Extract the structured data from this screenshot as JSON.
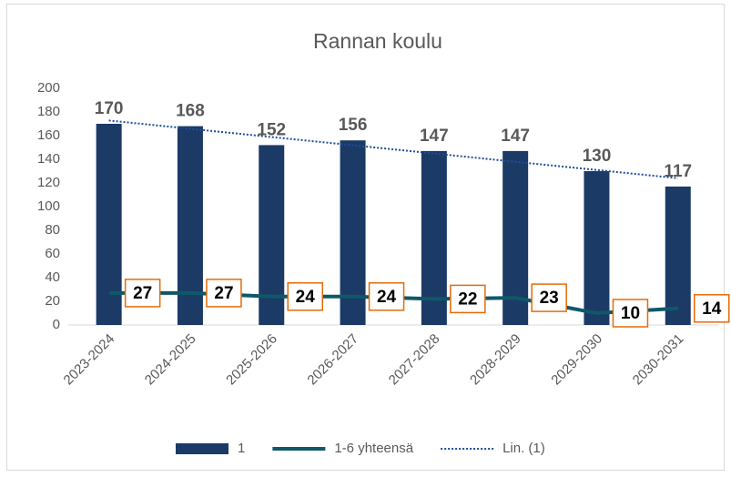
{
  "chart_data": {
    "type": "bar",
    "title": "Rannan koulu",
    "categories": [
      "2023-2024",
      "2024-2025",
      "2025-2026",
      "2026-2027",
      "2027-2028",
      "2028-2029",
      "2029-2030",
      "2030-2031"
    ],
    "series": [
      {
        "name": "1",
        "type": "bar",
        "color": "#1b3a66",
        "values": [
          170,
          168,
          152,
          156,
          147,
          147,
          130,
          117
        ]
      },
      {
        "name": "1-6 yhteensä",
        "type": "line",
        "color": "#0f5868",
        "values": [
          27,
          27,
          24,
          24,
          22,
          23,
          10,
          14
        ]
      },
      {
        "name": "Lin. (1)",
        "type": "trend",
        "color": "#1f4e99",
        "values": [
          172.8,
          165.8,
          158.8,
          151.9,
          144.9,
          137.9,
          131.0,
          124.0
        ]
      }
    ],
    "ylim": [
      0,
      200
    ],
    "yticks": [
      0,
      20,
      40,
      60,
      80,
      100,
      120,
      140,
      160,
      180,
      200
    ],
    "grid": false,
    "legend": "bottom"
  }
}
